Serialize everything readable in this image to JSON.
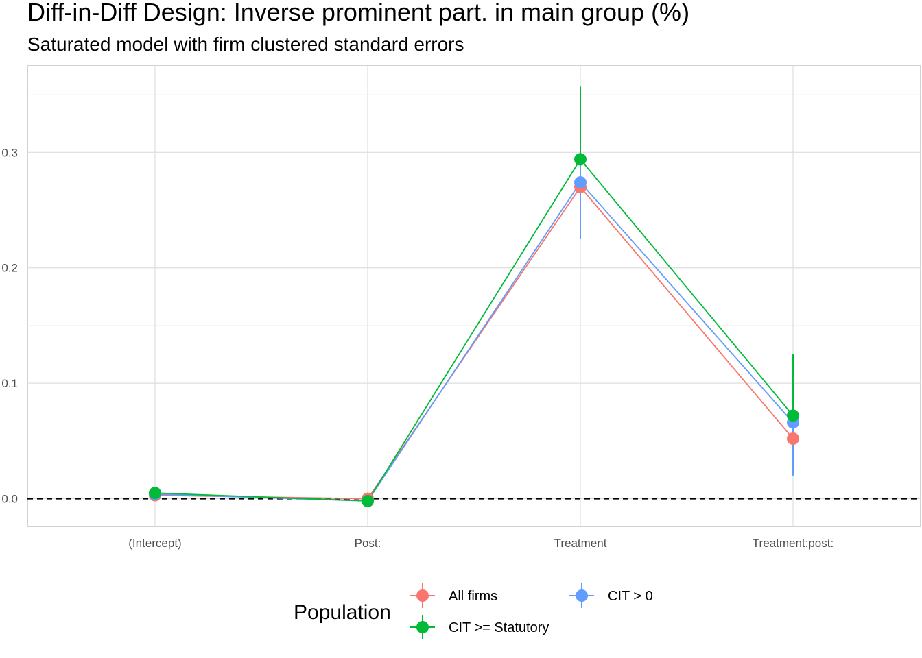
{
  "chart_data": {
    "type": "scatter",
    "title": "Diff-in-Diff Design: Inverse prominent part. in main group (%)",
    "subtitle": "Saturated model with firm clustered standard errors",
    "xlabel": "",
    "ylabel": "",
    "categories": [
      "(Intercept)",
      "Post:",
      "Treatment",
      "Treatment:post:"
    ],
    "ylim": [
      -0.024,
      0.375
    ],
    "yticks": [
      "0.0",
      "0.1",
      "0.2",
      "0.3"
    ],
    "ytick_values": [
      0.0,
      0.1,
      0.2,
      0.3
    ],
    "reference_line": 0.0,
    "grid": true,
    "legend_title": "Population",
    "legend_position": "bottom",
    "series": [
      {
        "name": "All firms",
        "color": "#F8766D",
        "values": [
          0.003,
          0.0,
          0.27,
          0.052
        ],
        "lower": [
          null,
          null,
          null,
          null
        ],
        "upper": [
          null,
          null,
          null,
          null
        ]
      },
      {
        "name": "CIT >= Statutory",
        "color": "#00BA38",
        "values": [
          0.005,
          -0.002,
          0.294,
          0.072
        ],
        "lower": [
          null,
          null,
          null,
          null
        ],
        "upper": [
          null,
          null,
          0.357,
          0.125
        ]
      },
      {
        "name": "CIT > 0",
        "color": "#619CFF",
        "values": [
          0.004,
          -0.002,
          0.274,
          0.066
        ],
        "lower": [
          null,
          null,
          0.225,
          0.02
        ],
        "upper": [
          null,
          null,
          0.325,
          0.11
        ]
      }
    ]
  }
}
